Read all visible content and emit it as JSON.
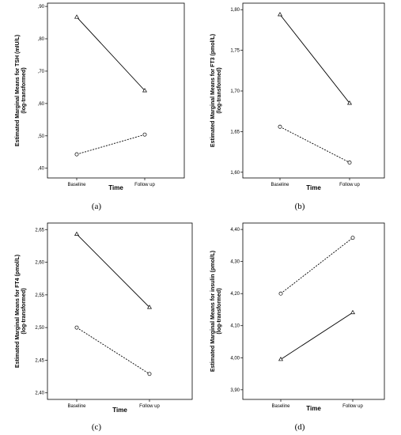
{
  "chart_data": [
    {
      "type": "line",
      "panel_label": "(a)",
      "xlabel": "Time",
      "ylabel": "Estimated Marginal Means for TSH (mIU/L)",
      "ylabel2": "(log-transformed)",
      "categories": [
        "Baseline",
        "Follow up"
      ],
      "ylim": [
        0.37,
        0.91
      ],
      "yticks": [
        0.4,
        0.5,
        0.6,
        0.7,
        0.8,
        0.9
      ],
      "yticklabels": [
        ",40",
        ",50",
        ",60",
        ",70",
        ",80",
        ",90"
      ],
      "series": [
        {
          "style": "solid",
          "marker": "triangle",
          "values": [
            0.867,
            0.64
          ]
        },
        {
          "style": "dashed",
          "marker": "circle",
          "values": [
            0.443,
            0.504
          ]
        }
      ]
    },
    {
      "type": "line",
      "panel_label": "(b)",
      "xlabel": "Time",
      "ylabel": "Estimated Marginal Means for FT3 (pmol/L)",
      "ylabel2": "(log-transformed)",
      "categories": [
        "Baseline",
        "Follow up"
      ],
      "ylim": [
        1.593,
        1.808
      ],
      "yticks": [
        1.6,
        1.65,
        1.7,
        1.75,
        1.8
      ],
      "yticklabels": [
        "1,60",
        "1,65",
        "1,70",
        "1,75",
        "1,80"
      ],
      "series": [
        {
          "style": "solid",
          "marker": "triangle",
          "values": [
            1.794,
            1.685
          ]
        },
        {
          "style": "dashed",
          "marker": "circle",
          "values": [
            1.656,
            1.612
          ]
        }
      ]
    },
    {
      "type": "line",
      "panel_label": "(c)",
      "xlabel": "Time",
      "ylabel": "Estimated Marginal Means for FT4 (pmol/L)",
      "ylabel2": "(log-transformed)",
      "categories": [
        "Baseline",
        "Follow up"
      ],
      "ylim": [
        2.39,
        2.66
      ],
      "yticks": [
        2.4,
        2.45,
        2.5,
        2.55,
        2.6,
        2.65
      ],
      "yticklabels": [
        "2,40",
        "2,45",
        "2,50",
        "2,55",
        "2,60",
        "2,65"
      ],
      "series": [
        {
          "style": "solid",
          "marker": "triangle",
          "values": [
            2.643,
            2.531
          ]
        },
        {
          "style": "dashed",
          "marker": "circle",
          "values": [
            2.5,
            2.429
          ]
        }
      ]
    },
    {
      "type": "line",
      "panel_label": "(d)",
      "xlabel": "Time",
      "ylabel": "Estimated Marginal Means for insulin (pmol/L)",
      "ylabel2": "(log-transformed)",
      "categories": [
        "Baseline",
        "Follow up"
      ],
      "ylim": [
        3.87,
        4.42
      ],
      "yticks": [
        3.9,
        4.0,
        4.1,
        4.2,
        4.3,
        4.4
      ],
      "yticklabels": [
        "3,90",
        "4,00",
        "4,10",
        "4,20",
        "4,30",
        "4,40"
      ],
      "series": [
        {
          "style": "solid",
          "marker": "triangle",
          "values": [
            3.995,
            4.141
          ]
        },
        {
          "style": "dashed",
          "marker": "circle",
          "values": [
            4.2,
            4.374
          ]
        }
      ]
    }
  ]
}
